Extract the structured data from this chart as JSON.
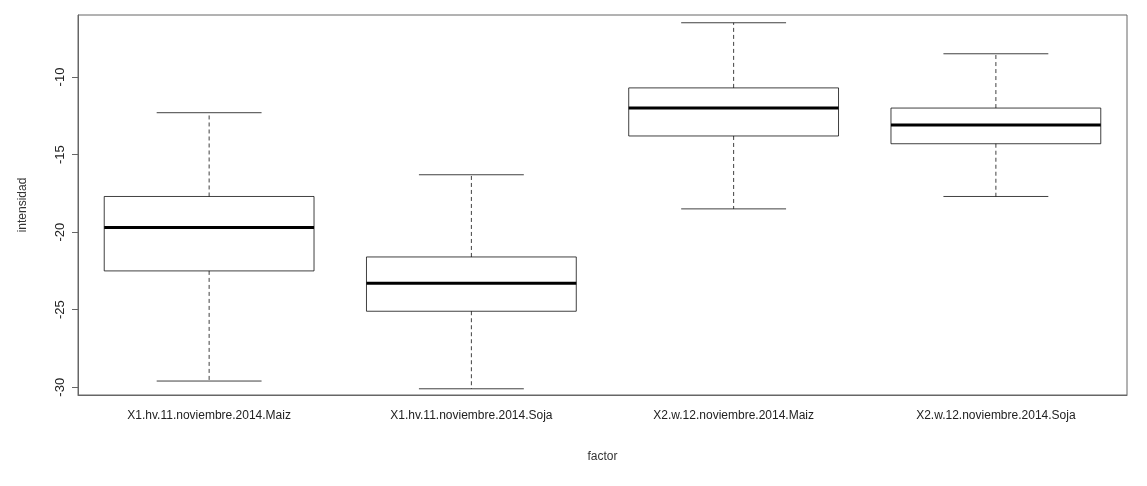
{
  "chart_data": {
    "type": "box",
    "xlabel": "factor",
    "ylabel": "intensidad",
    "categories": [
      "X1.hv.11.noviembre.2014.Maiz",
      "X1.hv.11.noviembre.2014.Soja",
      "X2.w.12.noviembre.2014.Maiz",
      "X2.w.12.noviembre.2014.Soja"
    ],
    "boxes": [
      {
        "low": -29.6,
        "q1": -22.5,
        "median": -19.7,
        "q3": -17.7,
        "high": -12.3
      },
      {
        "low": -30.1,
        "q1": -25.1,
        "median": -23.3,
        "q3": -21.6,
        "high": -16.3
      },
      {
        "low": -18.5,
        "q1": -13.8,
        "median": -12.0,
        "q3": -10.7,
        "high": -6.5
      },
      {
        "low": -17.7,
        "q1": -14.3,
        "median": -13.1,
        "q3": -12.0,
        "high": -8.5
      }
    ],
    "color": "#000000",
    "ylim": [
      -30.5,
      -6
    ],
    "yticks": [
      -30,
      -25,
      -20,
      -15,
      -10
    ],
    "grid": false
  }
}
